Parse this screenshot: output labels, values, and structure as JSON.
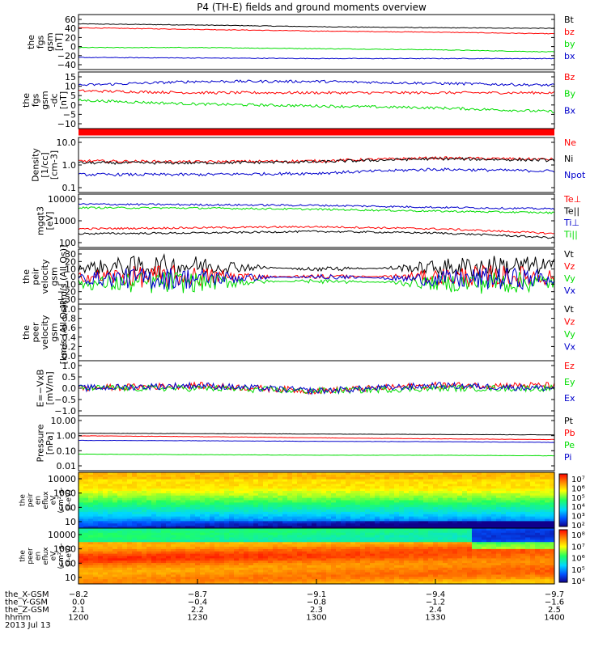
{
  "title": "P4 (TH-E) fields and ground moments overview",
  "colors": {
    "black": "#000000",
    "red": "#ff0000",
    "green": "#00dd00",
    "blue": "#0000cc"
  },
  "chart_data": [
    {
      "type": "line",
      "panel": "fgs_gsm",
      "ylabel": [
        "the",
        "fgs",
        "gsm",
        "[nT]"
      ],
      "yticks": [
        "60",
        "40",
        "20",
        "0",
        "−20",
        "−40"
      ],
      "ylim": [
        -40,
        60
      ],
      "series": [
        {
          "name": "Bt",
          "color": "black",
          "x": [
            1200,
            1230,
            1300,
            1330,
            1400
          ],
          "y": [
            43,
            41,
            38,
            36,
            35
          ]
        },
        {
          "name": "bz",
          "color": "red",
          "x": [
            1200,
            1230,
            1300,
            1330,
            1400
          ],
          "y": [
            36,
            33,
            30,
            28,
            25
          ]
        },
        {
          "name": "by",
          "color": "green",
          "x": [
            1200,
            1230,
            1300,
            1330,
            1400
          ],
          "y": [
            0,
            0,
            -2,
            -4,
            -8
          ]
        },
        {
          "name": "bx",
          "color": "blue",
          "x": [
            1200,
            1230,
            1300,
            1330,
            1400
          ],
          "y": [
            -18,
            -19,
            -20,
            -20,
            -20
          ]
        }
      ]
    },
    {
      "type": "line",
      "panel": "fgs_gsm_dc",
      "ylabel": [
        "the",
        "fgs",
        "gsm",
        "-dc",
        "[nT]"
      ],
      "yticks": [
        "15",
        "10",
        "5",
        "0",
        "−5",
        "−10"
      ],
      "ylim": [
        -15,
        15
      ],
      "series": [
        {
          "name": "Bz",
          "color": "red",
          "x": [
            1200,
            1230,
            1300,
            1330,
            1400
          ],
          "y": [
            5,
            4,
            4,
            4,
            4
          ]
        },
        {
          "name": "By",
          "color": "green",
          "x": [
            1200,
            1230,
            1300,
            1330,
            1400
          ],
          "y": [
            0,
            -2,
            -3,
            -4,
            -6
          ]
        },
        {
          "name": "Bx",
          "color": "blue",
          "x": [
            1200,
            1230,
            1300,
            1330,
            1400
          ],
          "y": [
            8,
            10,
            10,
            9,
            8
          ]
        }
      ]
    },
    {
      "type": "line",
      "panel": "density",
      "scale": "log",
      "ylabel": [
        "Density",
        "[1/cc]",
        "[cm-3]"
      ],
      "yticks": [
        "10.0",
        "1.0",
        "0.1"
      ],
      "ylim": [
        0.1,
        10
      ],
      "series": [
        {
          "name": "Ne",
          "color": "red",
          "x": [
            1200,
            1230,
            1300,
            1330,
            1400
          ],
          "y": [
            1.4,
            1.3,
            1.4,
            1.8,
            1.6
          ]
        },
        {
          "name": "Ni",
          "color": "black",
          "x": [
            1200,
            1230,
            1300,
            1330,
            1400
          ],
          "y": [
            1.2,
            1.2,
            1.3,
            1.7,
            1.5
          ]
        },
        {
          "name": "Npot",
          "color": "blue",
          "x": [
            1200,
            1230,
            1300,
            1330,
            1400
          ],
          "y": [
            0.45,
            0.45,
            0.5,
            0.7,
            0.6
          ]
        }
      ]
    },
    {
      "type": "line",
      "panel": "temperature",
      "scale": "log",
      "ylabel": [
        "mgqt3",
        "[eV]"
      ],
      "yticks": [
        "10000",
        "1000",
        "100"
      ],
      "ylim": [
        100,
        10000
      ],
      "series": [
        {
          "name": "Te⊥",
          "color": "red",
          "x": [
            1200,
            1230,
            1300,
            1330,
            1400
          ],
          "y": [
            500,
            550,
            600,
            500,
            330
          ]
        },
        {
          "name": "Te||",
          "color": "black",
          "x": [
            1200,
            1230,
            1300,
            1330,
            1400
          ],
          "y": [
            330,
            350,
            400,
            350,
            230
          ]
        },
        {
          "name": "Ti⊥",
          "color": "blue",
          "x": [
            1200,
            1230,
            1300,
            1330,
            1400
          ],
          "y": [
            4200,
            4000,
            3800,
            3200,
            2800
          ]
        },
        {
          "name": "Ti||",
          "color": "green",
          "x": [
            1200,
            1230,
            1300,
            1330,
            1400
          ],
          "y": [
            3100,
            3000,
            2700,
            2300,
            2000
          ]
        }
      ]
    },
    {
      "type": "line",
      "panel": "peir_velocity",
      "ylabel": [
        "the",
        "peir",
        "velocity",
        "gsm",
        "[km/s (All Qs)]"
      ],
      "yticks": [
        "30",
        "20",
        "10",
        "0",
        "−10",
        "−20",
        "−30"
      ],
      "ylim": [
        -30,
        30
      ],
      "series": [
        {
          "name": "Vt",
          "color": "black",
          "x": [
            1200,
            1230,
            1300,
            1330,
            1400
          ],
          "y": [
            10,
            12,
            8,
            10,
            12
          ]
        },
        {
          "name": "Vz",
          "color": "red",
          "x": [
            1200,
            1230,
            1300,
            1330,
            1400
          ],
          "y": [
            0,
            0,
            0,
            0,
            0
          ]
        },
        {
          "name": "Vy",
          "color": "green",
          "x": [
            1200,
            1230,
            1300,
            1330,
            1400
          ],
          "y": [
            -8,
            -6,
            -5,
            -7,
            -6
          ]
        },
        {
          "name": "Vx",
          "color": "blue",
          "x": [
            1200,
            1230,
            1300,
            1330,
            1400
          ],
          "y": [
            -2,
            -2,
            0,
            -3,
            -2
          ]
        }
      ]
    },
    {
      "type": "line",
      "panel": "peer_velocity",
      "ylabel": [
        "the",
        "peer",
        "velocity",
        "gsm",
        "[km/s (All Qs)]"
      ],
      "yticks": [
        "1.0",
        "0.8",
        "0.6",
        "0.4",
        "0.2",
        "0.0"
      ],
      "ylim": [
        0,
        1
      ],
      "series": [
        {
          "name": "Vt",
          "color": "black"
        },
        {
          "name": "Vz",
          "color": "red"
        },
        {
          "name": "Vy",
          "color": "green"
        },
        {
          "name": "Vx",
          "color": "blue"
        }
      ]
    },
    {
      "type": "line",
      "panel": "efield",
      "ylabel": [
        "E=−VxB",
        "[mV/m]"
      ],
      "yticks": [
        "1.0",
        "0.5",
        "0.0",
        "−0.5",
        "−1.0"
      ],
      "ylim": [
        -1,
        1
      ],
      "series": [
        {
          "name": "Ez",
          "color": "red",
          "x": [
            1200,
            1230,
            1300,
            1330,
            1400
          ],
          "y": [
            0,
            0.1,
            -0.1,
            0.1,
            0.1
          ]
        },
        {
          "name": "Ey",
          "color": "green",
          "x": [
            1200,
            1230,
            1300,
            1330,
            1400
          ],
          "y": [
            0,
            0,
            -0.1,
            0,
            0
          ]
        },
        {
          "name": "Ex",
          "color": "blue",
          "x": [
            1200,
            1230,
            1300,
            1330,
            1400
          ],
          "y": [
            0,
            0.1,
            -0.1,
            0.1,
            0
          ]
        }
      ]
    },
    {
      "type": "line",
      "panel": "pressure",
      "scale": "log",
      "ylabel": [
        "Pressure",
        "[nPa]"
      ],
      "yticks": [
        "10.00",
        "1.00",
        "0.10",
        "0.01"
      ],
      "ylim": [
        0.01,
        10
      ],
      "series": [
        {
          "name": "Pt",
          "color": "black",
          "x": [
            1200,
            1230,
            1300,
            1330,
            1400
          ],
          "y": [
            1.1,
            1.05,
            1.0,
            0.95,
            0.9
          ]
        },
        {
          "name": "Pb",
          "color": "red",
          "x": [
            1200,
            1230,
            1300,
            1330,
            1400
          ],
          "y": [
            0.8,
            0.72,
            0.62,
            0.55,
            0.5
          ]
        },
        {
          "name": "Pe",
          "color": "green",
          "x": [
            1200,
            1230,
            1300,
            1330,
            1400
          ],
          "y": [
            0.08,
            0.075,
            0.07,
            0.07,
            0.065
          ]
        },
        {
          "name": "Pi",
          "color": "blue",
          "x": [
            1200,
            1230,
            1300,
            1330,
            1400
          ],
          "y": [
            0.45,
            0.43,
            0.4,
            0.38,
            0.35
          ]
        }
      ]
    },
    {
      "type": "heatmap",
      "panel": "peir_spectrogram",
      "ylabel": [
        "the",
        "peir",
        "en",
        "eflux",
        "eV",
        "(cm²-s-",
        "sr-eV)"
      ],
      "yticks": [
        "10000",
        "1000",
        "100",
        "10"
      ],
      "colorbar_ticks": [
        "10⁷",
        "10⁶",
        "10⁵",
        "10⁴",
        "10³",
        "10²"
      ]
    },
    {
      "type": "heatmap",
      "panel": "peer_spectrogram",
      "ylabel": [
        "the",
        "peer",
        "en",
        "eflux",
        "eV",
        "(cm²-s-",
        "sr-eV)"
      ],
      "yticks": [
        "10000",
        "1000",
        "100",
        "10"
      ],
      "colorbar_ticks": [
        "10⁸",
        "10⁷",
        "10⁶",
        "10⁵",
        "10⁴"
      ]
    }
  ],
  "x_axis": {
    "rows": [
      {
        "label": "the_X-GSM",
        "values": [
          "−8.2",
          "−8.7",
          "−9.1",
          "−9.4",
          "−9.7"
        ]
      },
      {
        "label": "the_Y-GSM",
        "values": [
          "0.0",
          "−0.4",
          "−0.8",
          "−1.2",
          "−1.6"
        ]
      },
      {
        "label": "the_Z-GSM",
        "values": [
          "2.1",
          "2.2",
          "2.3",
          "2.4",
          "2.5"
        ]
      },
      {
        "label": "hhmm",
        "values": [
          "1200",
          "1230",
          "1300",
          "1330",
          "1400"
        ]
      }
    ],
    "date": "2013 Jul 13"
  }
}
